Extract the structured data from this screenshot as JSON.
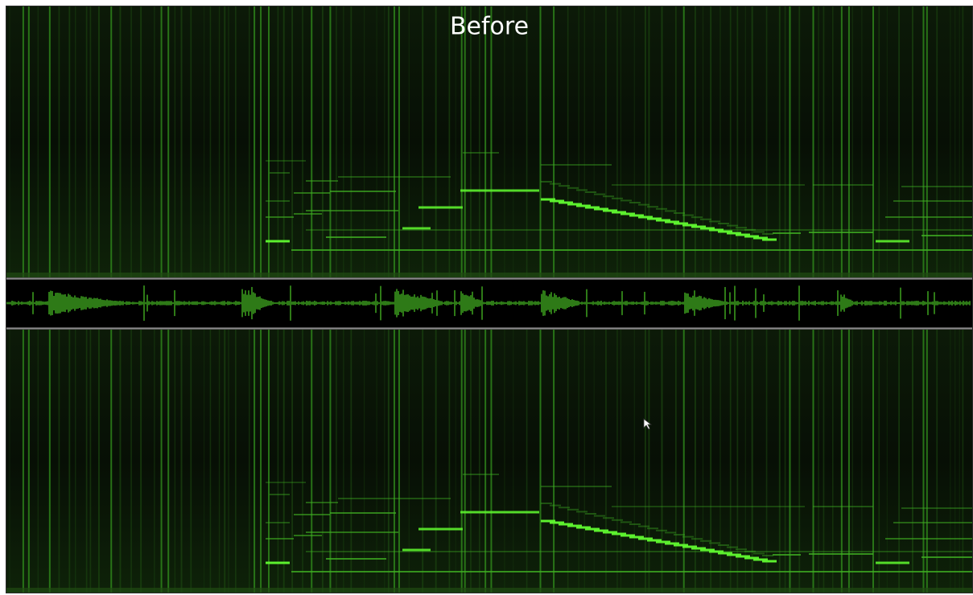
{
  "header": {
    "title": "Before"
  }
}
